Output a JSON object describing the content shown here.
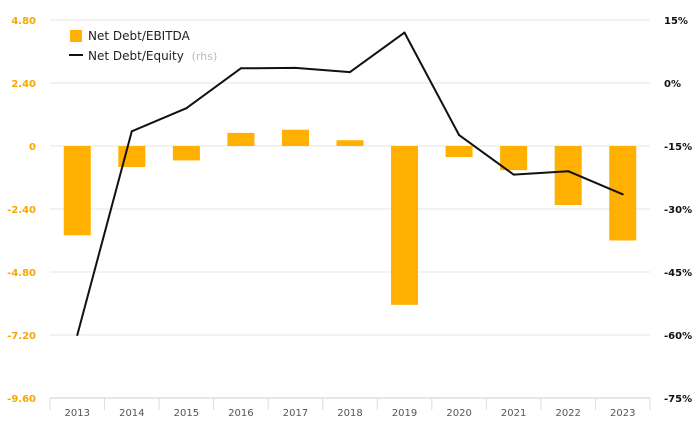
{
  "chart_data": {
    "type": "bar",
    "categories": [
      "2013",
      "2014",
      "2015",
      "2016",
      "2017",
      "2018",
      "2019",
      "2020",
      "2021",
      "2022",
      "2023"
    ],
    "series": [
      {
        "name": "Net Debt/EBITDA",
        "type": "bar",
        "axis": "left",
        "color": "#FFB000",
        "values": [
          -3.4,
          -0.8,
          -0.55,
          0.5,
          0.62,
          0.22,
          -6.05,
          -0.42,
          -0.92,
          -2.25,
          -3.6
        ]
      },
      {
        "name": "Net Debt/Equity",
        "rhs_label": "(rhs)",
        "type": "line",
        "axis": "right",
        "color": "#111111",
        "values": [
          -60.0,
          -11.5,
          -6.0,
          3.5,
          3.6,
          2.6,
          12.0,
          -12.4,
          -21.8,
          -21.0,
          -26.5
        ]
      }
    ],
    "left_axis": {
      "ticks": [
        "4.80",
        "2.40",
        "0",
        "-2.40",
        "-4.80",
        "-7.20",
        "-9.60"
      ],
      "tick_values": [
        4.8,
        2.4,
        0,
        -2.4,
        -4.8,
        -7.2,
        -9.6
      ],
      "ylim": [
        -9.6,
        4.8
      ],
      "color": "#F5A800"
    },
    "right_axis": {
      "ticks": [
        "15%",
        "0%",
        "-15%",
        "-30%",
        "-45%",
        "-60%",
        "-75%"
      ],
      "tick_values": [
        15,
        0,
        -15,
        -30,
        -45,
        -60,
        -75
      ],
      "ylim": [
        -75,
        15
      ]
    },
    "grid": true,
    "legend_position": "top-left"
  }
}
